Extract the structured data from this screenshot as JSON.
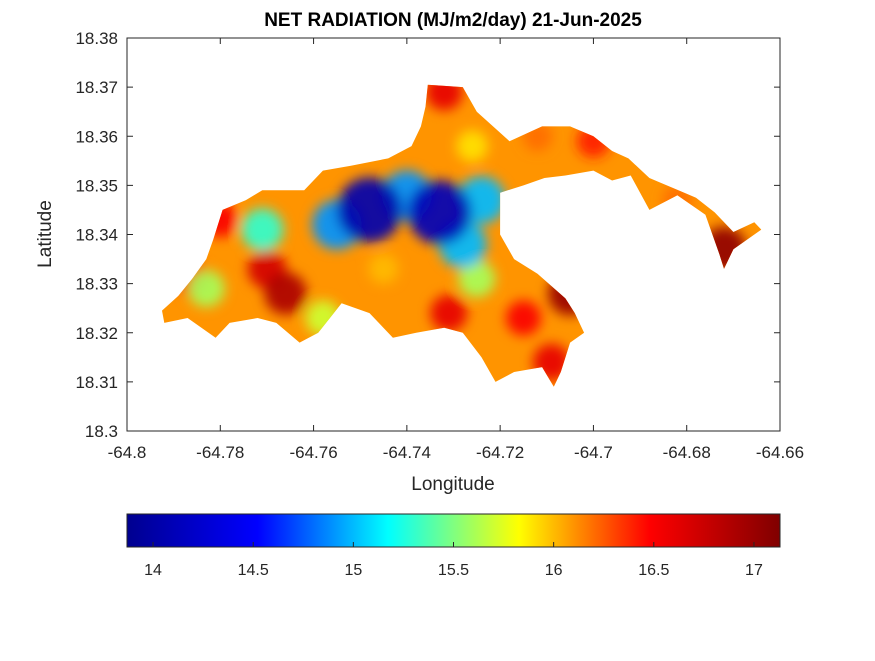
{
  "chart_data": {
    "type": "heatmap",
    "title": "NET RADIATION (MJ/m2/day) 21-Jun-2025",
    "xlabel": "Longitude",
    "ylabel": "Latitude",
    "xlim": [
      -64.8,
      -64.66
    ],
    "ylim": [
      18.3,
      18.38
    ],
    "xticks": [
      -64.8,
      -64.78,
      -64.76,
      -64.74,
      -64.72,
      -64.7,
      -64.68,
      -64.66
    ],
    "xtick_labels": [
      "-64.8",
      "-64.78",
      "-64.76",
      "-64.74",
      "-64.72",
      "-64.7",
      "-64.68",
      "-64.66"
    ],
    "yticks": [
      18.3,
      18.31,
      18.32,
      18.33,
      18.34,
      18.35,
      18.36,
      18.37,
      18.38
    ],
    "ytick_labels": [
      "18.3",
      "18.31",
      "18.32",
      "18.33",
      "18.34",
      "18.35",
      "18.36",
      "18.37",
      "18.38"
    ],
    "colormap": "jet",
    "colorbar": {
      "orientation": "horizontal",
      "placement": "bottom",
      "range": [
        13.87,
        17.13
      ],
      "ticks": [
        14,
        14.5,
        15,
        15.5,
        16,
        16.5,
        17
      ],
      "tick_labels": [
        "14",
        "14.5",
        "15",
        "15.5",
        "16",
        "16.5",
        "17"
      ],
      "stops": [
        "#00008f",
        "#0000ff",
        "#00ffff",
        "#ffff00",
        "#ff0000",
        "#800000"
      ]
    },
    "grid": false,
    "land_outline": [
      [
        -64.792,
        18.322
      ],
      [
        -64.7925,
        18.3245
      ],
      [
        -64.789,
        18.3275
      ],
      [
        -64.786,
        18.331
      ],
      [
        -64.783,
        18.335
      ],
      [
        -64.7815,
        18.339
      ],
      [
        -64.7795,
        18.345
      ],
      [
        -64.7745,
        18.347
      ],
      [
        -64.771,
        18.349
      ],
      [
        -64.762,
        18.349
      ],
      [
        -64.758,
        18.353
      ],
      [
        -64.752,
        18.354
      ],
      [
        -64.744,
        18.3555
      ],
      [
        -64.739,
        18.358
      ],
      [
        -64.737,
        18.362
      ],
      [
        -64.736,
        18.366
      ],
      [
        -64.7355,
        18.3705
      ],
      [
        -64.728,
        18.37
      ],
      [
        -64.725,
        18.365
      ],
      [
        -64.718,
        18.359
      ],
      [
        -64.711,
        18.362
      ],
      [
        -64.705,
        18.362
      ],
      [
        -64.7,
        18.36
      ],
      [
        -64.696,
        18.357
      ],
      [
        -64.6925,
        18.3555
      ],
      [
        -64.688,
        18.3515
      ],
      [
        -64.678,
        18.3475
      ],
      [
        -64.674,
        18.3445
      ],
      [
        -64.67,
        18.3405
      ],
      [
        -64.6655,
        18.3425
      ],
      [
        -64.664,
        18.341
      ],
      [
        -64.67,
        18.337
      ],
      [
        -64.672,
        18.333
      ],
      [
        -64.673,
        18.336
      ],
      [
        -64.676,
        18.344
      ],
      [
        -64.682,
        18.348
      ],
      [
        -64.688,
        18.345
      ],
      [
        -64.692,
        18.352
      ],
      [
        -64.696,
        18.351
      ],
      [
        -64.7,
        18.353
      ],
      [
        -64.706,
        18.352
      ],
      [
        -64.7105,
        18.3515
      ],
      [
        -64.715,
        18.35
      ],
      [
        -64.72,
        18.3485
      ],
      [
        -64.72,
        18.34
      ],
      [
        -64.717,
        18.335
      ],
      [
        -64.712,
        18.332
      ],
      [
        -64.706,
        18.327
      ],
      [
        -64.704,
        18.324
      ],
      [
        -64.702,
        18.32
      ],
      [
        -64.705,
        18.318
      ],
      [
        -64.707,
        18.312
      ],
      [
        -64.7085,
        18.309
      ],
      [
        -64.711,
        18.313
      ],
      [
        -64.717,
        18.312
      ],
      [
        -64.721,
        18.31
      ],
      [
        -64.724,
        18.315
      ],
      [
        -64.728,
        18.32
      ],
      [
        -64.732,
        18.321
      ],
      [
        -64.738,
        18.32
      ],
      [
        -64.743,
        18.319
      ],
      [
        -64.748,
        18.324
      ],
      [
        -64.754,
        18.326
      ],
      [
        -64.759,
        18.32
      ],
      [
        -64.763,
        18.318
      ],
      [
        -64.768,
        18.322
      ],
      [
        -64.772,
        18.323
      ],
      [
        -64.778,
        18.322
      ],
      [
        -64.781,
        18.319
      ],
      [
        -64.787,
        18.323
      ]
    ],
    "hotspots": [
      {
        "lon": -64.748,
        "lat": 18.345,
        "value": 14.05
      },
      {
        "lon": -64.733,
        "lat": 18.3445,
        "value": 14.1
      },
      {
        "lon": -64.755,
        "lat": 18.342,
        "value": 14.9
      },
      {
        "lon": -64.74,
        "lat": 18.348,
        "value": 14.9
      },
      {
        "lon": -64.728,
        "lat": 18.338,
        "value": 15.0
      },
      {
        "lon": -64.724,
        "lat": 18.347,
        "value": 15.0
      },
      {
        "lon": -64.771,
        "lat": 18.341,
        "value": 15.3
      },
      {
        "lon": -64.783,
        "lat": 18.329,
        "value": 15.6
      },
      {
        "lon": -64.725,
        "lat": 18.331,
        "value": 15.6
      },
      {
        "lon": -64.726,
        "lat": 18.358,
        "value": 15.9
      },
      {
        "lon": -64.766,
        "lat": 18.328,
        "value": 16.9
      },
      {
        "lon": -64.77,
        "lat": 18.333,
        "value": 16.7
      },
      {
        "lon": -64.705,
        "lat": 18.328,
        "value": 17.0
      },
      {
        "lon": -64.715,
        "lat": 18.323,
        "value": 16.5
      },
      {
        "lon": -64.672,
        "lat": 18.337,
        "value": 17.05
      },
      {
        "lon": -64.731,
        "lat": 18.324,
        "value": 16.6
      },
      {
        "lon": -64.786,
        "lat": 18.331,
        "value": 16.5
      },
      {
        "lon": -64.78,
        "lat": 18.343,
        "value": 16.5
      },
      {
        "lon": -64.732,
        "lat": 18.369,
        "value": 16.6
      },
      {
        "lon": -64.709,
        "lat": 18.314,
        "value": 16.6
      },
      {
        "lon": -64.7,
        "lat": 18.359,
        "value": 16.4
      },
      {
        "lon": -64.758,
        "lat": 18.323,
        "value": 15.7
      },
      {
        "lon": -64.745,
        "lat": 18.333,
        "value": 16.0
      },
      {
        "lon": -64.682,
        "lat": 18.347,
        "value": 16.2
      },
      {
        "lon": -64.712,
        "lat": 18.36,
        "value": 16.2
      }
    ]
  }
}
